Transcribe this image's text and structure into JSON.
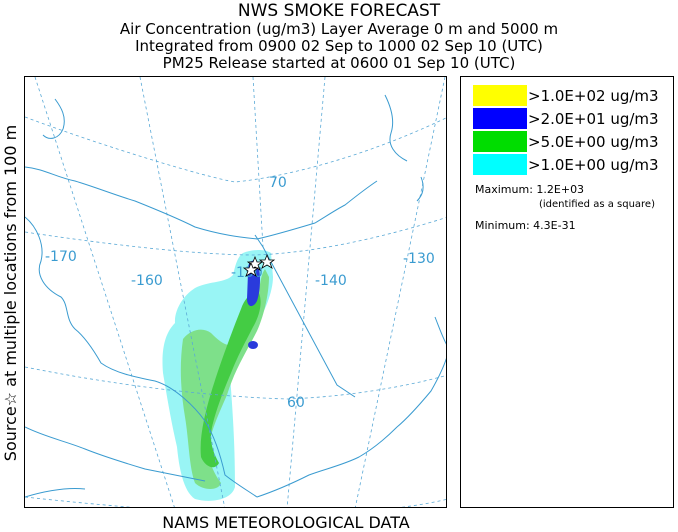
{
  "header": {
    "title": "NWS SMOKE FORECAST",
    "line2": "Air Concentration (ug/m3) Layer Average    0 m and  5000 m",
    "line3": "Integrated from 0900 02 Sep to 1000 02 Sep 10 (UTC)",
    "line4": "PM25 Release started at 0600 01 Sep 10 (UTC)"
  },
  "side_label": "Source☆  at multiple locations   from   100 m",
  "bottom_label": "NAMS METEOROLOGICAL DATA",
  "map": {
    "longitude_labels": [
      "-170",
      "-160",
      "-150",
      "-140",
      "-130"
    ],
    "latitude_labels": [
      "70",
      "60"
    ],
    "colors": {
      "coast": "#3a9bd0",
      "grid": "#5aa9d6"
    }
  },
  "legend": {
    "items": [
      {
        "label": ">1.0E+02 ug/m3",
        "color": "#ffff00"
      },
      {
        "label": ">2.0E+01 ug/m3",
        "color": "#0000ff"
      },
      {
        "label": ">5.0E+00 ug/m3",
        "color": "#00dd00"
      },
      {
        "label": ">1.0E+00 ug/m3",
        "color": "#00ffff"
      }
    ],
    "maximum": "Maximum: 1.2E+03",
    "maximum_note": "(identified as a square)",
    "minimum": "Minimum: 4.3E-31"
  }
}
